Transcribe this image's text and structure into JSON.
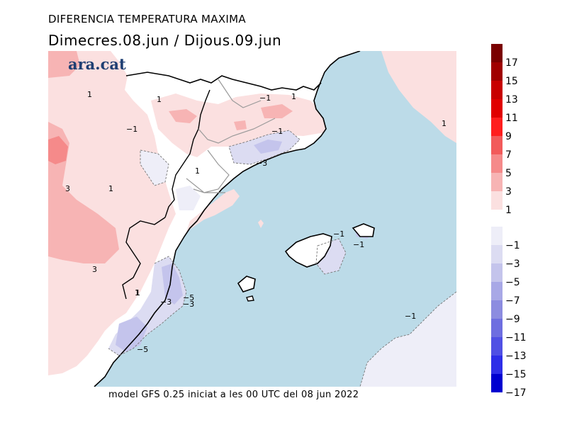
{
  "header": {
    "variable": "DIFERENCIA TEMPERATURA MAXIMA",
    "period": "Dimecres.08.jun  /  Dijous.09.jun"
  },
  "brand": {
    "logo_text": "ara.cat"
  },
  "footer": {
    "model_run": "model GFS 0.25 iniciat a les 00 UTC del 08 jun 2022"
  },
  "legend": {
    "warm": [
      {
        "label": "17",
        "color": "#7a0000"
      },
      {
        "label": "15",
        "color": "#a00000"
      },
      {
        "label": "13",
        "color": "#c80000"
      },
      {
        "label": "11",
        "color": "#e00000"
      },
      {
        "label": "9",
        "color": "#ff1e1e"
      },
      {
        "label": "7",
        "color": "#f25a5a"
      },
      {
        "label": "5",
        "color": "#f58a8a"
      },
      {
        "label": "3",
        "color": "#f7b4b4"
      },
      {
        "label": "1",
        "color": "#fbe0e0"
      }
    ],
    "cold": [
      {
        "label": "−1",
        "color": "#eeeef8"
      },
      {
        "label": "−3",
        "color": "#dcdcf2"
      },
      {
        "label": "−5",
        "color": "#c4c4ec"
      },
      {
        "label": "−7",
        "color": "#a8a8e6"
      },
      {
        "label": "−9",
        "color": "#8c8ce0"
      },
      {
        "label": "−11",
        "color": "#6e6ee0"
      },
      {
        "label": "−13",
        "color": "#5050e4"
      },
      {
        "label": "−15",
        "color": "#2e2ee8"
      },
      {
        "label": "−17",
        "color": "#0000d0"
      }
    ]
  },
  "map": {
    "sea_color": "#bcdbe8",
    "contour_labels": [
      "1",
      "1",
      "−1",
      "1",
      "1",
      "−1",
      "−3",
      "−1",
      "3",
      "1",
      "3",
      "1",
      "−1",
      "−1",
      "−3",
      "−5",
      "−3",
      "−5",
      "−1",
      "1",
      "1"
    ]
  }
}
